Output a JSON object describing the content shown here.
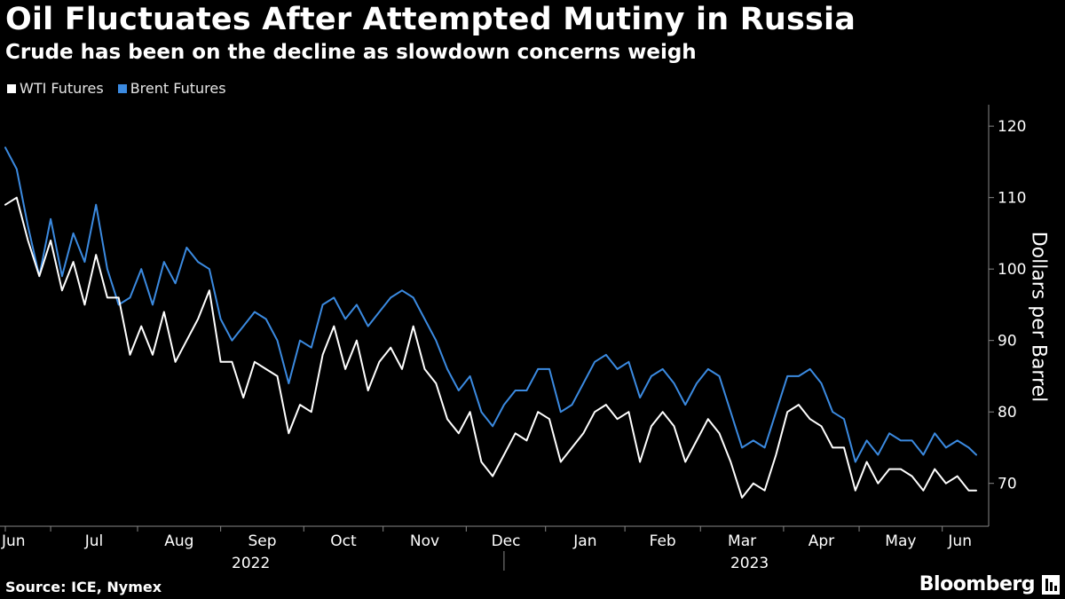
{
  "title": "Oil Fluctuates After Attempted Mutiny in Russia",
  "subtitle": "Crude has been on the decline as slowdown concerns weigh",
  "source": "Source: ICE, Nymex",
  "brand": "Bloomberg",
  "brand_icon": "bloomberg-terminal-icon",
  "colors": {
    "background": "#000000",
    "wti": "#ffffff",
    "brent": "#3b8ae0",
    "axis": "#888888"
  },
  "chart_data": {
    "type": "line",
    "title": "Oil Fluctuates After Attempted Mutiny in Russia",
    "subtitle": "Crude has been on the decline as slowdown concerns weigh",
    "xlabel": "",
    "ylabel": "Dollars per Barrel",
    "ylim": [
      64,
      123
    ],
    "y_ticks": [
      70,
      80,
      90,
      100,
      110,
      120
    ],
    "x_range": [
      0,
      257
    ],
    "month_ticks": [
      {
        "label": "Jun",
        "x": 0
      },
      {
        "label": "Jul",
        "x": 12
      },
      {
        "label": "Aug",
        "x": 35
      },
      {
        "label": "Sep",
        "x": 57
      },
      {
        "label": "Oct",
        "x": 79
      },
      {
        "label": "Nov",
        "x": 100
      },
      {
        "label": "Dec",
        "x": 122
      },
      {
        "label": "Jan",
        "x": 143
      },
      {
        "label": "Feb",
        "x": 164
      },
      {
        "label": "Mar",
        "x": 184
      },
      {
        "label": "Apr",
        "x": 206
      },
      {
        "label": "May",
        "x": 226
      },
      {
        "label": "Jun",
        "x": 248
      }
    ],
    "years": [
      {
        "label": "2022",
        "x": 65
      },
      {
        "label": "2023",
        "x": 197
      }
    ],
    "year_divider_x": 132,
    "legend": [
      "WTI Futures",
      "Brent Futures"
    ],
    "series": [
      {
        "name": "WTI Futures",
        "x": [
          0,
          3,
          6,
          9,
          12,
          15,
          18,
          21,
          24,
          27,
          30,
          33,
          36,
          39,
          42,
          45,
          48,
          51,
          54,
          57,
          60,
          63,
          66,
          69,
          72,
          75,
          78,
          81,
          84,
          87,
          90,
          93,
          96,
          99,
          102,
          105,
          108,
          111,
          114,
          117,
          120,
          123,
          126,
          129,
          132,
          135,
          138,
          141,
          144,
          147,
          150,
          153,
          156,
          159,
          162,
          165,
          168,
          171,
          174,
          177,
          180,
          183,
          186,
          189,
          192,
          195,
          198,
          201,
          204,
          207,
          210,
          213,
          216,
          219,
          222,
          225,
          228,
          231,
          234,
          237,
          240,
          243,
          246,
          249,
          252,
          255,
          257
        ],
        "values": [
          109,
          110,
          104,
          99,
          104,
          97,
          101,
          95,
          102,
          96,
          96,
          88,
          92,
          88,
          94,
          87,
          90,
          93,
          97,
          87,
          87,
          82,
          87,
          86,
          85,
          77,
          81,
          80,
          88,
          92,
          86,
          90,
          83,
          87,
          89,
          86,
          92,
          86,
          84,
          79,
          77,
          80,
          73,
          71,
          74,
          77,
          76,
          80,
          79,
          73,
          75,
          77,
          80,
          81,
          79,
          80,
          73,
          78,
          80,
          78,
          73,
          76,
          79,
          77,
          73,
          68,
          70,
          69,
          74,
          80,
          81,
          79,
          78,
          75,
          75,
          69,
          73,
          70,
          72,
          72,
          71,
          69,
          72,
          70,
          71,
          69,
          69
        ]
      },
      {
        "name": "Brent Futures",
        "x": [
          0,
          3,
          6,
          9,
          12,
          15,
          18,
          21,
          24,
          27,
          30,
          33,
          36,
          39,
          42,
          45,
          48,
          51,
          54,
          57,
          60,
          63,
          66,
          69,
          72,
          75,
          78,
          81,
          84,
          87,
          90,
          93,
          96,
          99,
          102,
          105,
          108,
          111,
          114,
          117,
          120,
          123,
          126,
          129,
          132,
          135,
          138,
          141,
          144,
          147,
          150,
          153,
          156,
          159,
          162,
          165,
          168,
          171,
          174,
          177,
          180,
          183,
          186,
          189,
          192,
          195,
          198,
          201,
          204,
          207,
          210,
          213,
          216,
          219,
          222,
          225,
          228,
          231,
          234,
          237,
          240,
          243,
          246,
          249,
          252,
          255,
          257
        ],
        "values": [
          117,
          114,
          106,
          99,
          107,
          99,
          105,
          101,
          109,
          100,
          95,
          96,
          100,
          95,
          101,
          98,
          103,
          101,
          100,
          93,
          90,
          92,
          94,
          93,
          90,
          84,
          90,
          89,
          95,
          96,
          93,
          95,
          92,
          94,
          96,
          97,
          96,
          93,
          90,
          86,
          83,
          85,
          80,
          78,
          81,
          83,
          83,
          86,
          86,
          80,
          81,
          84,
          87,
          88,
          86,
          87,
          82,
          85,
          86,
          84,
          81,
          84,
          86,
          85,
          80,
          75,
          76,
          75,
          80,
          85,
          85,
          86,
          84,
          80,
          79,
          73,
          76,
          74,
          77,
          76,
          76,
          74,
          77,
          75,
          76,
          75,
          74
        ]
      }
    ]
  }
}
